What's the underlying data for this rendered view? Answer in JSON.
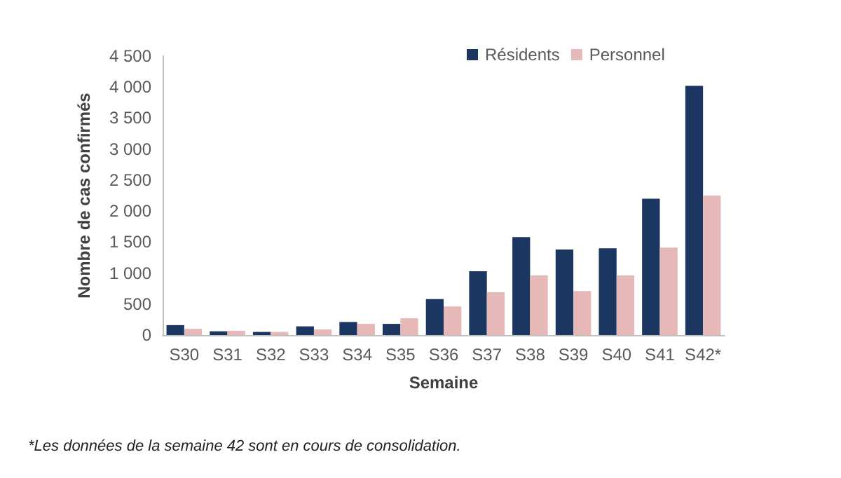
{
  "chart_data": {
    "type": "bar",
    "xlabel": "Semaine",
    "ylabel": "Nombre de cas confirmés",
    "categories": [
      "S30",
      "S31",
      "S32",
      "S33",
      "S34",
      "S35",
      "S36",
      "S37",
      "S38",
      "S39",
      "S40",
      "S41",
      "S42*"
    ],
    "series": [
      {
        "name": "Résidents",
        "color": "#1b3661",
        "values": [
          160,
          60,
          50,
          140,
          210,
          180,
          580,
          1030,
          1580,
          1380,
          1400,
          2200,
          4020
        ]
      },
      {
        "name": "Personnel",
        "color": "#e6b8b8",
        "values": [
          100,
          70,
          50,
          90,
          180,
          270,
          460,
          690,
          960,
          710,
          960,
          1410,
          2250
        ]
      }
    ],
    "ylim": [
      0,
      4500
    ],
    "yticks": [
      0,
      500,
      {
        "value": 1000,
        "label": "1 000"
      },
      {
        "value": 1500,
        "label": "1 500"
      },
      {
        "value": 2000,
        "label": "2 000"
      },
      {
        "value": 2500,
        "label": "2 500"
      },
      {
        "value": 3000,
        "label": "3 000"
      },
      {
        "value": 3500,
        "label": "3 500"
      },
      {
        "value": 4000,
        "label": "4 000"
      },
      {
        "value": 4500,
        "label": "4 500"
      }
    ],
    "grid": false,
    "legend": "top",
    "annotations": [
      "*Les données de la semaine 42 sont en cours de consolidation."
    ]
  }
}
